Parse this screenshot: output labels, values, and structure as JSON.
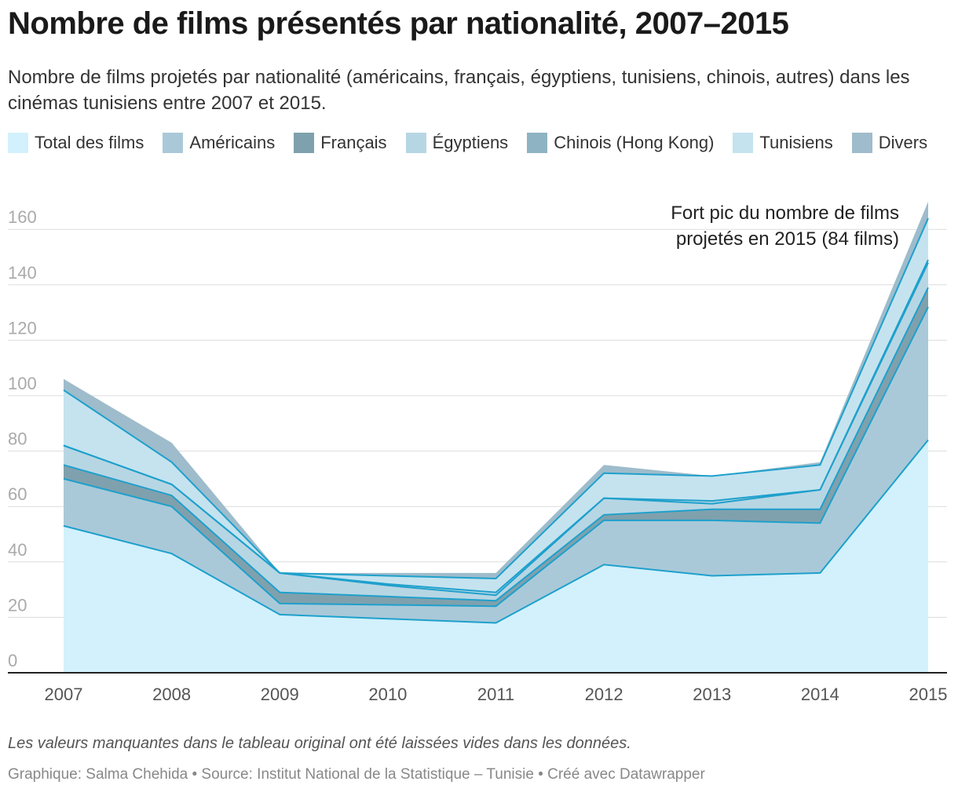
{
  "header": {
    "title": "Nombre de films présentés par nationalité, 2007–2015",
    "subtitle": "Nombre de films projetés par nationalité (américains, français, égyptiens, tunisiens, chinois, autres) dans les cinémas tunisiens entre 2007 et 2015."
  },
  "legend": [
    {
      "label": "Total des films",
      "color": "#d2f1fc"
    },
    {
      "label": "Américains",
      "color": "#a9c9d9"
    },
    {
      "label": "Français",
      "color": "#7fa1ad"
    },
    {
      "label": "Égyptiens",
      "color": "#b7d6e4"
    },
    {
      "label": "Chinois (Hong Kong)",
      "color": "#8eb3c3"
    },
    {
      "label": "Tunisiens",
      "color": "#c4e3ef"
    },
    {
      "label": "Divers",
      "color": "#9ebccb"
    }
  ],
  "annotation": {
    "line1": "Fort pic du nombre de films",
    "line2": "projetés en 2015 (84 films)"
  },
  "footer": {
    "note": "Les valeurs manquantes dans le tableau original ont été laissées vides dans les données.",
    "credits": "Graphique: Salma Chehida • Source: Institut National de la Statistique – Tunisie • Créé avec Datawrapper"
  },
  "chart_data": {
    "type": "area",
    "x": [
      "2007",
      "2008",
      "2009",
      "2010",
      "2011",
      "2012",
      "2013",
      "2014",
      "2015"
    ],
    "ylim": [
      0,
      170
    ],
    "yticks": [
      0,
      20,
      40,
      60,
      80,
      100,
      120,
      140,
      160
    ],
    "grid": true,
    "legend_position": "top",
    "layers": [
      {
        "name": "Total des films",
        "color": "#d2f1fc",
        "values": [
          53,
          43,
          21,
          19.5,
          18,
          39,
          35,
          36,
          84
        ]
      },
      {
        "name": "Américains",
        "color": "#a9c9d9",
        "values": [
          70,
          60,
          25,
          24.5,
          24,
          55,
          55,
          54,
          132
        ]
      },
      {
        "name": "Français",
        "color": "#7fa1ad",
        "values": [
          75,
          64,
          29,
          27.5,
          26,
          57,
          59,
          59,
          139
        ]
      },
      {
        "name": "Égyptiens",
        "color": "#b7d6e4",
        "values": [
          82,
          68,
          36,
          32,
          29,
          63,
          62,
          66,
          149
        ]
      },
      {
        "name": "Chinois (Hong Kong)",
        "color": "#8eb3c3",
        "values": [
          82,
          68,
          36,
          31.5,
          28,
          63,
          61,
          66,
          148
        ]
      },
      {
        "name": "Tunisiens",
        "color": "#c4e3ef",
        "values": [
          102,
          76,
          36,
          35,
          34,
          72,
          71,
          75,
          164
        ]
      },
      {
        "name": "Divers",
        "color": "#9ebccb",
        "values": [
          106,
          83,
          36,
          36,
          36,
          75,
          71,
          76,
          170
        ]
      }
    ]
  }
}
